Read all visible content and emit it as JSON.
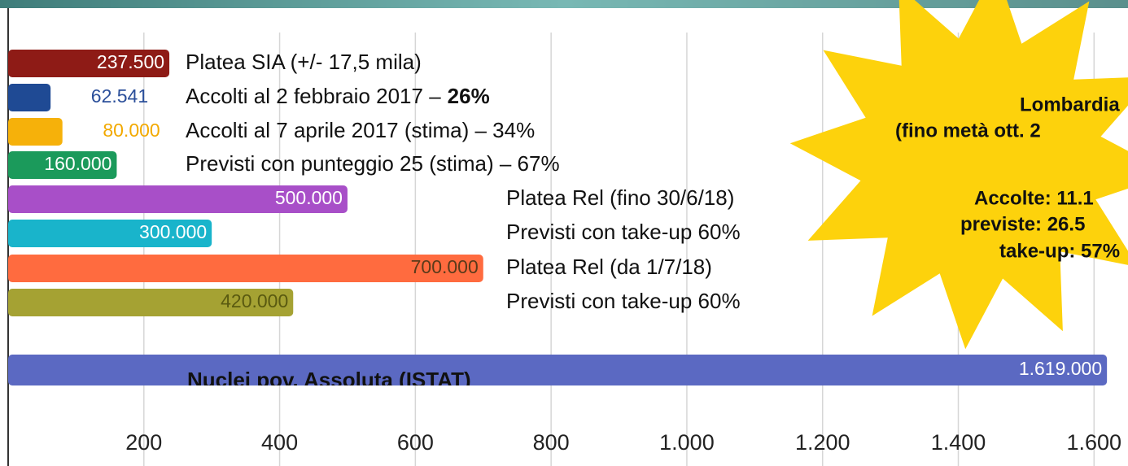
{
  "chart_data": {
    "type": "bar",
    "orientation": "horizontal",
    "categories": [
      "Platea SIA (+/- 17,5 mila)",
      "Accolti al 2 febbraio 2017 –",
      "Accolti al 7 aprile 2017 (stima) – 34%",
      "Previsti con punteggio 25 (stima) – 67%",
      "Platea Rel (fino 30/6/18)",
      "Previsti con take-up 60%",
      "Platea Rel (da 1/7/18)",
      "Previsti con take-up 60%",
      "Nuclei pov. Assoluta (ISTAT)"
    ],
    "category_emphasis": [
      {
        "index": 1,
        "text": "26%"
      }
    ],
    "values": [
      237.5,
      62.541,
      80,
      160,
      500,
      300,
      700,
      420,
      1619
    ],
    "value_labels": [
      "237.500",
      "62.541",
      "80.000",
      "160.000",
      "500.000",
      "300.000",
      "700.000",
      "420.000",
      "1.619.000"
    ],
    "colors": [
      "#8e1b16",
      "#1f4a94",
      "#f6b10a",
      "#1b9a5b",
      "#a84fc8",
      "#19b4cb",
      "#ff6b3f",
      "#a5a233",
      "#5b69c2"
    ],
    "value_label_colors": [
      "#ffffff",
      "#2b4f9a",
      "#f2a900",
      "#ffffff",
      "#ffffff",
      "#ffffff",
      "#5a3a1a",
      "#5a5a10",
      "#ffffff"
    ],
    "xlim": [
      0,
      1650
    ],
    "xticks": [
      200,
      400,
      600,
      800,
      {
        "value": 1000,
        "label": "1.000"
      },
      {
        "value": 1200,
        "label": "1.200"
      },
      {
        "value": 1400,
        "label": "1.400"
      },
      {
        "value": 1600,
        "label": "1.600"
      }
    ],
    "grid": true,
    "callout": [
      "Lombardia",
      "(fino metà ott. 2",
      "Accolte: 11.1",
      "previste: 26.5",
      "take-up: 57%"
    ]
  }
}
